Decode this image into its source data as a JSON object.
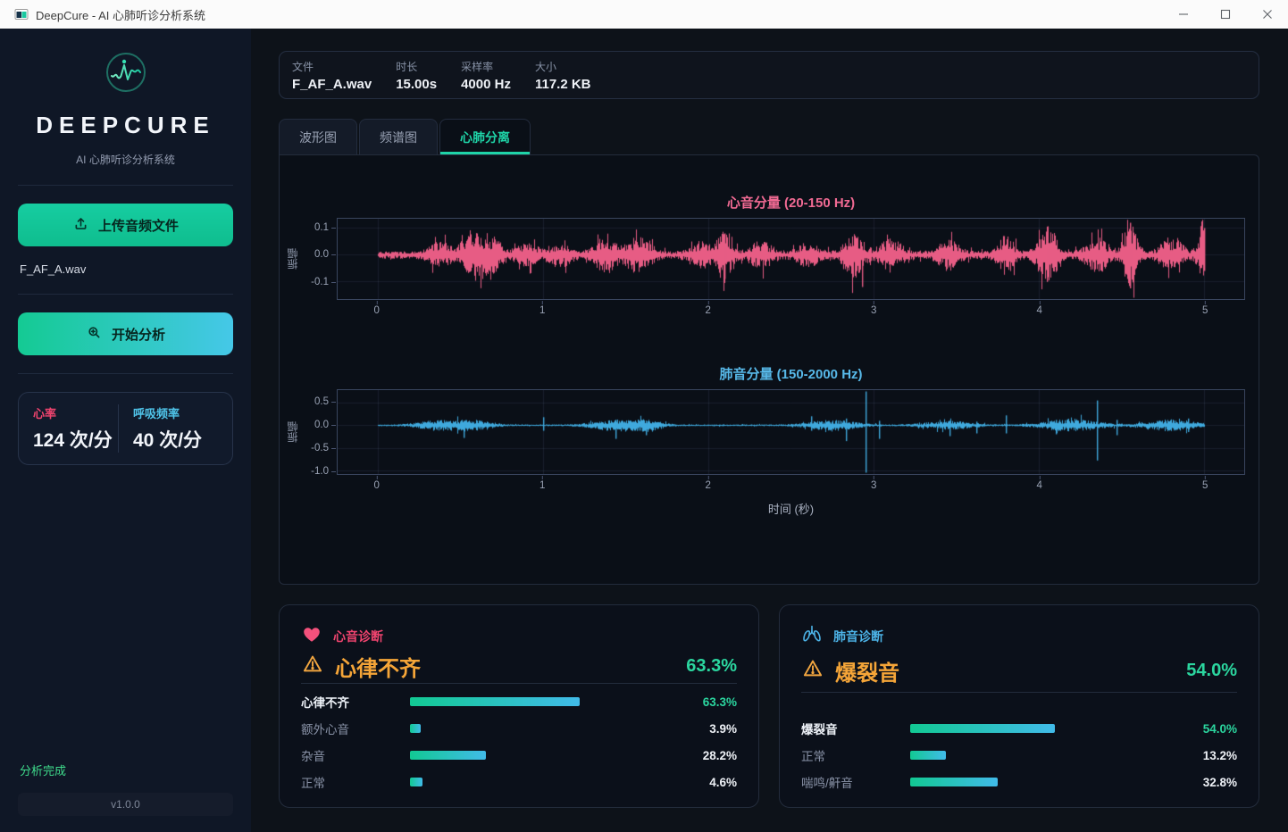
{
  "window": {
    "title": "DeepCure - AI 心肺听诊分析系统"
  },
  "sidebar": {
    "brand": "DEEPCURE",
    "subtitle": "AI 心肺听诊分析系统",
    "upload_button": "上传音频文件",
    "loaded_file": "F_AF_A.wav",
    "analyze_button": "开始分析",
    "stats": {
      "heart_rate_label": "心率",
      "heart_rate_value": "124 次/分",
      "resp_rate_label": "呼吸频率",
      "resp_rate_value": "40 次/分"
    },
    "status_text": "分析完成",
    "version": "v1.0.0"
  },
  "file_info": {
    "items": [
      {
        "label": "文件",
        "value": "F_AF_A.wav"
      },
      {
        "label": "时长",
        "value": "15.00s"
      },
      {
        "label": "采样率",
        "value": "4000 Hz"
      },
      {
        "label": "大小",
        "value": "117.2 KB"
      }
    ]
  },
  "tabs": [
    {
      "label": "波形图",
      "active": false
    },
    {
      "label": "频谱图",
      "active": false
    },
    {
      "label": "心肺分离",
      "active": true
    }
  ],
  "chart_data": [
    {
      "type": "line",
      "title": "心音分量 (20-150 Hz)",
      "ylabel": "振幅",
      "xlabel": "",
      "color": "#e75c84",
      "xticks": [
        0,
        1,
        2,
        3,
        4,
        5
      ],
      "yticks": [
        0.1,
        0.0,
        -0.1
      ],
      "xmax": 5,
      "ylim": [
        -0.165,
        0.135
      ],
      "seed": 7,
      "base_amplitude": 0.012,
      "bursts": [
        {
          "t": 0.38,
          "a": 0.032
        },
        {
          "t": 0.57,
          "a": 0.062,
          "w": 0.05
        },
        {
          "t": 0.68,
          "a": 0.05
        },
        {
          "t": 0.9,
          "a": 0.025
        },
        {
          "t": 1.1,
          "a": 0.03
        },
        {
          "t": 1.38,
          "a": 0.05
        },
        {
          "t": 1.58,
          "a": 0.055
        },
        {
          "t": 1.95,
          "a": 0.035
        },
        {
          "t": 2.1,
          "a": 0.075,
          "w": 0.04
        },
        {
          "t": 2.32,
          "a": 0.035
        },
        {
          "t": 2.6,
          "a": 0.03
        },
        {
          "t": 2.88,
          "a": 0.06,
          "w": 0.05
        },
        {
          "t": 3.1,
          "a": 0.045
        },
        {
          "t": 3.45,
          "a": 0.04
        },
        {
          "t": 3.8,
          "a": 0.055,
          "w": 0.04
        },
        {
          "t": 4.05,
          "a": 0.08,
          "w": 0.05
        },
        {
          "t": 4.35,
          "a": 0.05
        },
        {
          "t": 4.55,
          "a": 0.09,
          "w": 0.035
        },
        {
          "t": 4.8,
          "a": 0.045
        },
        {
          "t": 5.0,
          "a": 0.085,
          "w": 0.03
        }
      ],
      "spikes": [
        {
          "t": 2.93,
          "hi": 0.02,
          "lo": -0.12
        },
        {
          "t": 4.55,
          "hi": 0.12,
          "lo": -0.125
        },
        {
          "t": 4.05,
          "hi": 0.085,
          "lo": -0.1
        },
        {
          "t": 5.0,
          "hi": 0.1,
          "lo": -0.06
        },
        {
          "t": 2.1,
          "hi": 0.08,
          "lo": -0.09
        }
      ]
    },
    {
      "type": "line",
      "title": "肺音分量 (150-2000 Hz)",
      "ylabel": "振幅",
      "xlabel": "时间 (秒)",
      "color": "#3fa9dd",
      "xticks": [
        0,
        1,
        2,
        3,
        4,
        5
      ],
      "yticks": [
        0.5,
        0.0,
        -0.5,
        -1.0
      ],
      "xmax": 5,
      "ylim": [
        -1.08,
        0.78
      ],
      "seed": 21,
      "base_amplitude": 0.015,
      "bursts": [
        {
          "t": 0.4,
          "a": 0.1,
          "w": 0.12
        },
        {
          "t": 0.62,
          "a": 0.07,
          "w": 0.07
        },
        {
          "t": 1.45,
          "a": 0.1,
          "w": 0.12
        },
        {
          "t": 1.65,
          "a": 0.08,
          "w": 0.06
        },
        {
          "t": 2.75,
          "a": 0.09,
          "w": 0.12
        },
        {
          "t": 3.45,
          "a": 0.07,
          "w": 0.12
        },
        {
          "t": 4.2,
          "a": 0.11,
          "w": 0.14
        },
        {
          "t": 4.8,
          "a": 0.1,
          "w": 0.12
        }
      ],
      "spikes": [
        {
          "t": 0.52,
          "hi": 0.1,
          "lo": -0.28
        },
        {
          "t": 1.0,
          "hi": 0.18,
          "lo": -0.12
        },
        {
          "t": 1.44,
          "hi": 0.12,
          "lo": -0.3
        },
        {
          "t": 1.62,
          "hi": 0.1,
          "lo": -0.22
        },
        {
          "t": 2.62,
          "hi": 0.2,
          "lo": -0.12
        },
        {
          "t": 2.83,
          "hi": 0.15,
          "lo": -0.35
        },
        {
          "t": 2.95,
          "hi": 0.75,
          "lo": -1.05
        },
        {
          "t": 3.03,
          "hi": 0.1,
          "lo": -0.3
        },
        {
          "t": 3.46,
          "hi": 0.1,
          "lo": -0.24
        },
        {
          "t": 3.62,
          "hi": 0.08,
          "lo": -0.18
        },
        {
          "t": 3.8,
          "hi": 0.22,
          "lo": -0.18
        },
        {
          "t": 4.1,
          "hi": 0.12,
          "lo": -0.2
        },
        {
          "t": 4.35,
          "hi": 0.55,
          "lo": -0.78
        },
        {
          "t": 4.47,
          "hi": 0.12,
          "lo": -0.22
        },
        {
          "t": 4.9,
          "hi": 0.15,
          "lo": -0.15
        }
      ]
    }
  ],
  "diagnosis_cards": [
    {
      "icon": "heart-icon",
      "header": "心音诊断",
      "diagnosis": "心律不齐",
      "confidence": "63.3%",
      "rows": [
        {
          "label": "心律不齐",
          "pct": 63.3,
          "value": "63.3%",
          "highlight": true
        },
        {
          "label": "额外心音",
          "pct": 3.9,
          "value": "3.9%",
          "highlight": false
        },
        {
          "label": "杂音",
          "pct": 28.2,
          "value": "28.2%",
          "highlight": false
        },
        {
          "label": "正常",
          "pct": 4.6,
          "value": "4.6%",
          "highlight": false
        }
      ]
    },
    {
      "icon": "lungs-icon",
      "header": "肺音诊断",
      "diagnosis": "爆裂音",
      "confidence": "54.0%",
      "rows": [
        {
          "label": "爆裂音",
          "pct": 54.0,
          "value": "54.0%",
          "highlight": true
        },
        {
          "label": "正常",
          "pct": 13.2,
          "value": "13.2%",
          "highlight": false
        },
        {
          "label": "喘鸣/鼾音",
          "pct": 32.8,
          "value": "32.8%",
          "highlight": false
        }
      ]
    }
  ],
  "colors": {
    "accent": "#1ad1a5",
    "heart_pink": "#ef5d87",
    "lung_blue": "#4cb2e6",
    "warning_orange": "#f2a640",
    "success_green": "#2bd69f",
    "bar_gradient": [
      "#12c993",
      "#41bbe9"
    ]
  }
}
